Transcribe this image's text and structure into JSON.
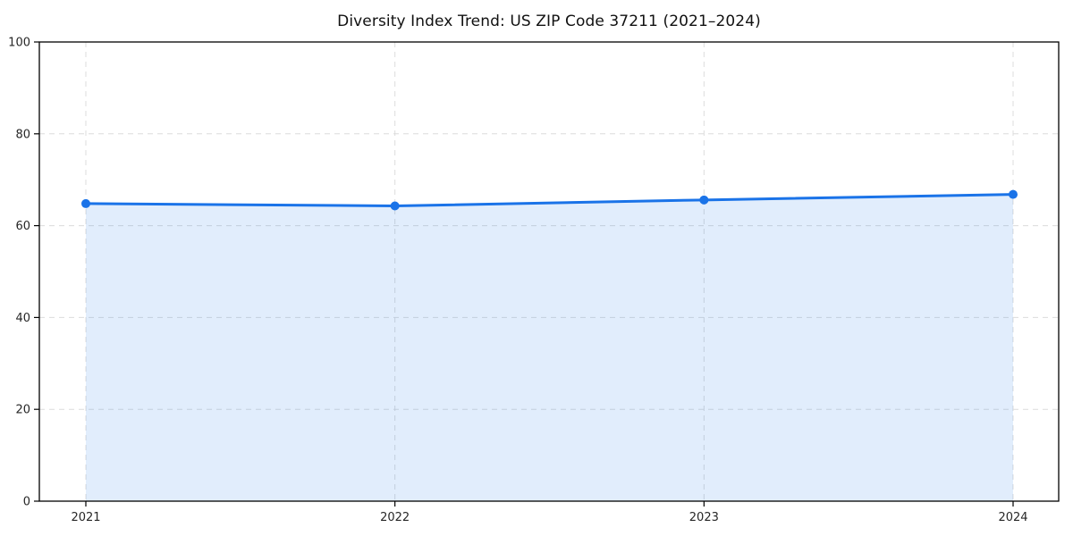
{
  "title": "Diversity Index Trend: US ZIP Code 37211 (2021–2024)",
  "chart_data": {
    "type": "area",
    "title": "Diversity Index Trend: US ZIP Code 37211 (2021–2024)",
    "categories": [
      "2021",
      "2022",
      "2023",
      "2024"
    ],
    "series": [
      {
        "name": "Diversity Index",
        "values": [
          64.8,
          64.3,
          65.6,
          66.8
        ]
      }
    ],
    "xlabel": "",
    "ylabel": "",
    "ylim": [
      0,
      100
    ],
    "yticks": [
      0,
      20,
      40,
      60,
      80,
      100
    ],
    "grid": true,
    "grid_style": "dashed",
    "legend_position": "none",
    "colors": {
      "line": "#1a73e8",
      "marker": "#1a73e8",
      "fill": "rgba(26,115,232,0.13)",
      "gridline": "#dcdcdc",
      "spine": "#000000",
      "tick_label": "#262626",
      "title": "#111111"
    }
  }
}
